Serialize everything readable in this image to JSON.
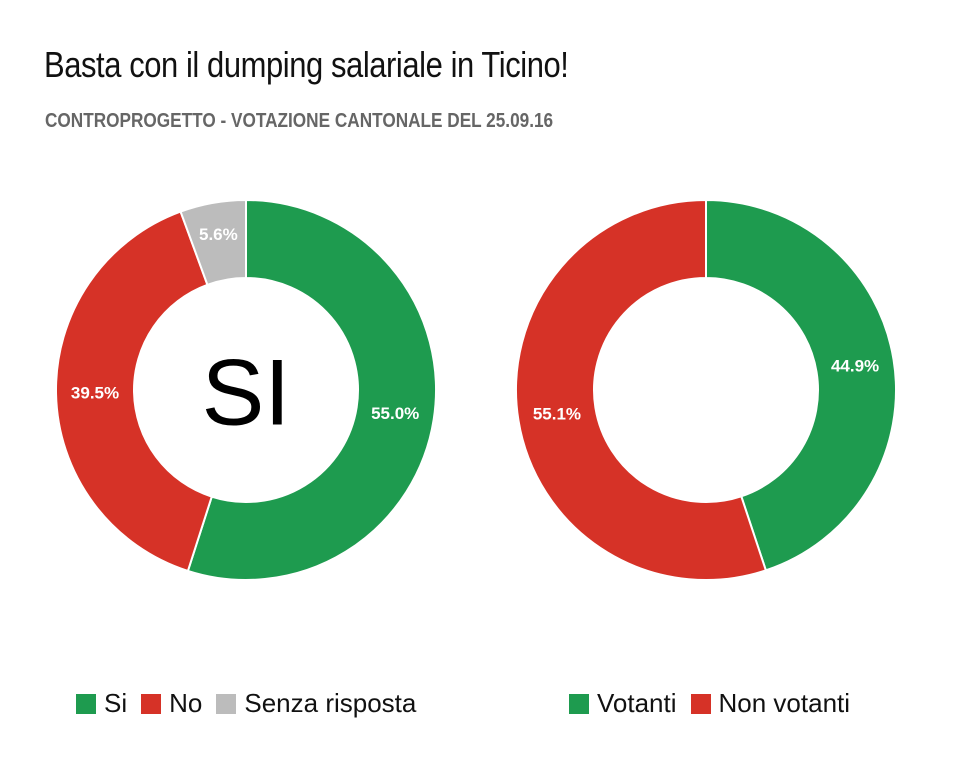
{
  "title": "Basta con il dumping salariale in Ticino!",
  "subtitle": "CONTROPROGETTO - VOTAZIONE CANTONALE DEL 25.09.16",
  "chart_data": [
    {
      "type": "pie",
      "donut": true,
      "center_label": "SI",
      "categories": [
        "Si",
        "No",
        "Senza risposta"
      ],
      "values": [
        55.0,
        39.5,
        5.6
      ],
      "labels": [
        "55.0%",
        "39.5%",
        "5.6%"
      ],
      "colors": [
        "#1e9b4f",
        "#d63227",
        "#bcbcbc"
      ],
      "legend": "bottom"
    },
    {
      "type": "pie",
      "donut": true,
      "center_label": "",
      "categories": [
        "Votanti",
        "Non votanti"
      ],
      "values": [
        44.9,
        55.1
      ],
      "labels": [
        "44.9%",
        "55.1%"
      ],
      "colors": [
        "#1e9b4f",
        "#d63227"
      ],
      "legend": "bottom"
    }
  ]
}
